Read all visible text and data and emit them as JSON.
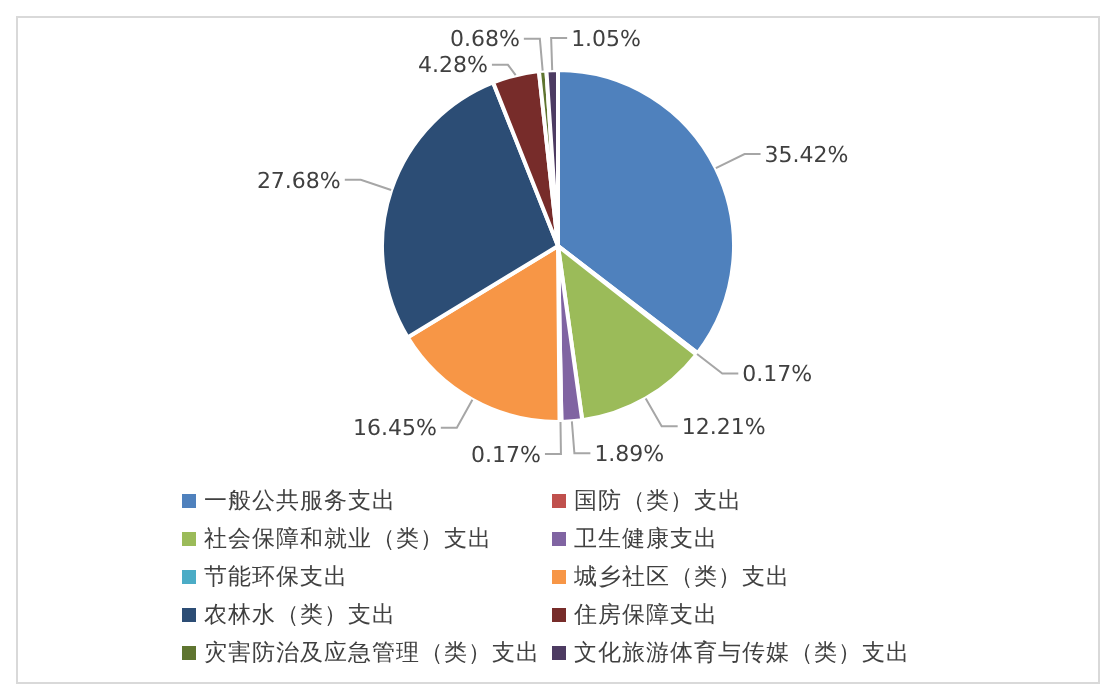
{
  "chart_data": {
    "type": "pie",
    "categories": [
      "一般公共服务支出",
      "国防（类）支出",
      "社会保障和就业（类）支出",
      "卫生健康支出",
      "节能环保支出",
      "城乡社区（类）支出",
      "农林水（类）支出",
      "住房保障支出",
      "灾害防治及应急管理（类）支出",
      "文化旅游体育与传媒（类）支出"
    ],
    "values": [
      35.42,
      0.17,
      12.21,
      1.89,
      0.17,
      16.45,
      27.68,
      4.28,
      0.68,
      1.05
    ],
    "value_labels": [
      "35.42%",
      "0.17%",
      "12.21%",
      "1.89%",
      "0.17%",
      "16.45%",
      "27.68%",
      "4.28%",
      "0.68%",
      "1.05%"
    ],
    "colors": [
      "#4f81bd",
      "#c0504d",
      "#9bbb59",
      "#8064a2",
      "#4bacc6",
      "#f79646",
      "#2c4d75",
      "#772c2a",
      "#5f7530",
      "#4d3b62"
    ],
    "legend": "bottom"
  }
}
